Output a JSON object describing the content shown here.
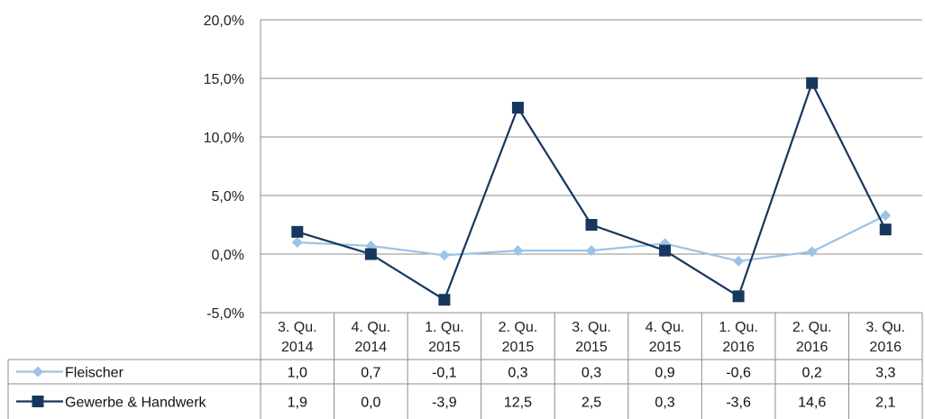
{
  "chart_data": {
    "type": "line",
    "categories": [
      [
        "3. Qu.",
        "2014"
      ],
      [
        "4. Qu.",
        "2014"
      ],
      [
        "1. Qu.",
        "2015"
      ],
      [
        "2. Qu.",
        "2015"
      ],
      [
        "3. Qu.",
        "2015"
      ],
      [
        "4. Qu.",
        "2015"
      ],
      [
        "1. Qu.",
        "2016"
      ],
      [
        "2. Qu.",
        "2016"
      ],
      [
        "3. Qu.",
        "2016"
      ]
    ],
    "y_ticks": [
      "20,0%",
      "15,0%",
      "10,0%",
      "5,0%",
      "0,0%",
      "-5,0%"
    ],
    "ylim": [
      -5,
      20
    ],
    "grid": true,
    "legend": "data-table",
    "series": [
      {
        "name": "Fleischer",
        "color": "#9dc3e6",
        "marker": "diamond",
        "values": [
          1.0,
          0.7,
          -0.1,
          0.3,
          0.3,
          0.9,
          -0.6,
          0.2,
          3.3
        ],
        "labels": [
          "1,0",
          "0,7",
          "-0,1",
          "0,3",
          "0,3",
          "0,9",
          "-0,6",
          "0,2",
          "3,3"
        ]
      },
      {
        "name": "Gewerbe & Handwerk",
        "color": "#17375e",
        "marker": "square",
        "values": [
          1.9,
          0.0,
          -3.9,
          12.5,
          2.5,
          0.3,
          -3.6,
          14.6,
          2.1
        ],
        "labels": [
          "1,9",
          "0,0",
          "-3,9",
          "12,5",
          "2,5",
          "0,3",
          "-3,6",
          "14,6",
          "2,1"
        ]
      }
    ]
  }
}
